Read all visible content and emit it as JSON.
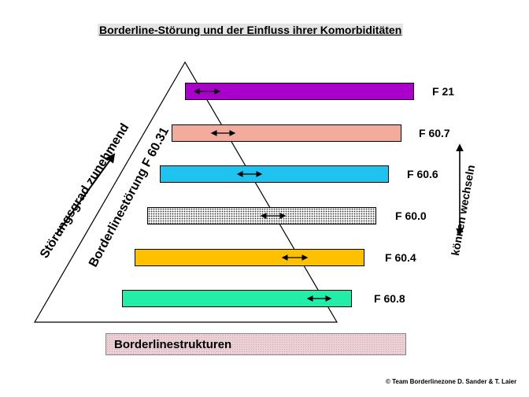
{
  "title": "Borderline-Störung und der Einfluss ihrer Komorbiditäten",
  "left_label": "Störungsgrad zunehmend",
  "triangle_label": "Borderlinestörung F 60.31",
  "right_label": "können wechseln",
  "bars": [
    {
      "code": "F 21",
      "color": "#aa00cc"
    },
    {
      "code": "F 60.7",
      "color": "#f3ac9c"
    },
    {
      "code": "F 60.6",
      "color": "#20c3ef"
    },
    {
      "code": "F 60.0",
      "color": "#f4f4f4"
    },
    {
      "code": "F 60.4",
      "color": "#ffc000"
    },
    {
      "code": "F 60.8",
      "color": "#22eeaa"
    }
  ],
  "structure": {
    "label": "Borderlinestrukturen",
    "color": "#ead1d5"
  },
  "copyright": "© Team Borderlinezone D. Sander & T. Laier"
}
